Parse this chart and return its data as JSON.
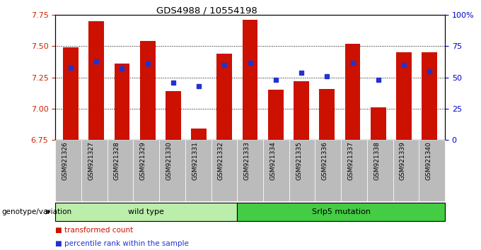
{
  "title": "GDS4988 / 10554198",
  "samples": [
    "GSM921326",
    "GSM921327",
    "GSM921328",
    "GSM921329",
    "GSM921330",
    "GSM921331",
    "GSM921332",
    "GSM921333",
    "GSM921334",
    "GSM921335",
    "GSM921336",
    "GSM921337",
    "GSM921338",
    "GSM921339",
    "GSM921340"
  ],
  "transformed_count": [
    7.49,
    7.7,
    7.36,
    7.54,
    7.14,
    6.84,
    7.44,
    7.71,
    7.15,
    7.22,
    7.16,
    7.52,
    7.01,
    7.45,
    7.45
  ],
  "percentile_rank": [
    58,
    63,
    57,
    61,
    46,
    43,
    60,
    62,
    48,
    54,
    51,
    62,
    48,
    60,
    55
  ],
  "ylim_left": [
    6.75,
    7.75
  ],
  "ylim_right": [
    0,
    100
  ],
  "yticks_left": [
    6.75,
    7.0,
    7.25,
    7.5,
    7.75
  ],
  "yticks_right": [
    0,
    25,
    50,
    75,
    100
  ],
  "ytick_labels_right": [
    "0",
    "25",
    "50",
    "75",
    "100%"
  ],
  "bar_color": "#cc1100",
  "dot_color": "#2233cc",
  "wild_type_count": 7,
  "group1_label": "wild type",
  "group2_label": "Srlp5 mutation",
  "group1_color": "#bbeeaa",
  "group2_color": "#44cc44",
  "legend_label1": "transformed count",
  "legend_label2": "percentile rank within the sample",
  "genotype_label": "genotype/variation",
  "tick_area_color": "#bbbbbb"
}
